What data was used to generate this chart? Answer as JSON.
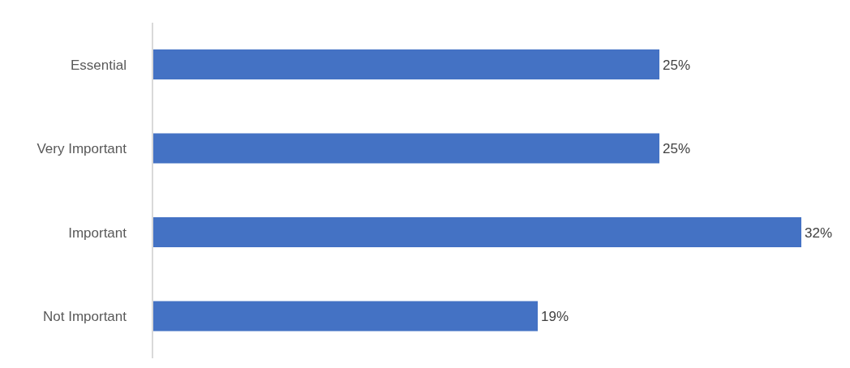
{
  "chart_data": {
    "type": "bar",
    "orientation": "horizontal",
    "categories": [
      "Essential",
      "Very Important",
      "Important",
      "Not Important"
    ],
    "values": [
      25,
      25,
      32,
      19
    ],
    "value_labels": [
      "25%",
      "25%",
      "32%",
      "19%"
    ],
    "color": "#4472c4"
  }
}
